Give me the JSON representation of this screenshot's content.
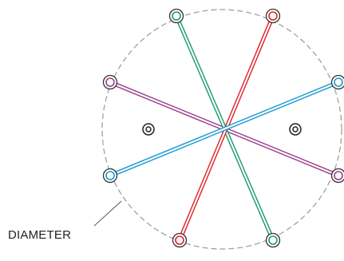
{
  "diagram": {
    "label": "DIAMETER",
    "colors": {
      "outline": "#9a9a9a",
      "terminal_ring": "#333333",
      "purple": "#9b3d8a",
      "green": "#1a9a6a",
      "red": "#e0202a",
      "blue": "#1a9ad0"
    },
    "terminals": [
      {
        "id": "top-left"
      },
      {
        "id": "top-right"
      },
      {
        "id": "upper-left"
      },
      {
        "id": "upper-right"
      },
      {
        "id": "lower-left"
      },
      {
        "id": "lower-right"
      },
      {
        "id": "bottom-left"
      },
      {
        "id": "bottom-right"
      }
    ],
    "connections": [
      {
        "color": "purple",
        "from": "upper-left",
        "to": "lower-right"
      },
      {
        "color": "green",
        "from": "top-left",
        "to": "bottom-right"
      },
      {
        "color": "red",
        "from": "top-right",
        "to": "bottom-left"
      },
      {
        "color": "blue",
        "from": "lower-left",
        "to": "upper-right"
      }
    ],
    "mounting_holes": 2
  }
}
